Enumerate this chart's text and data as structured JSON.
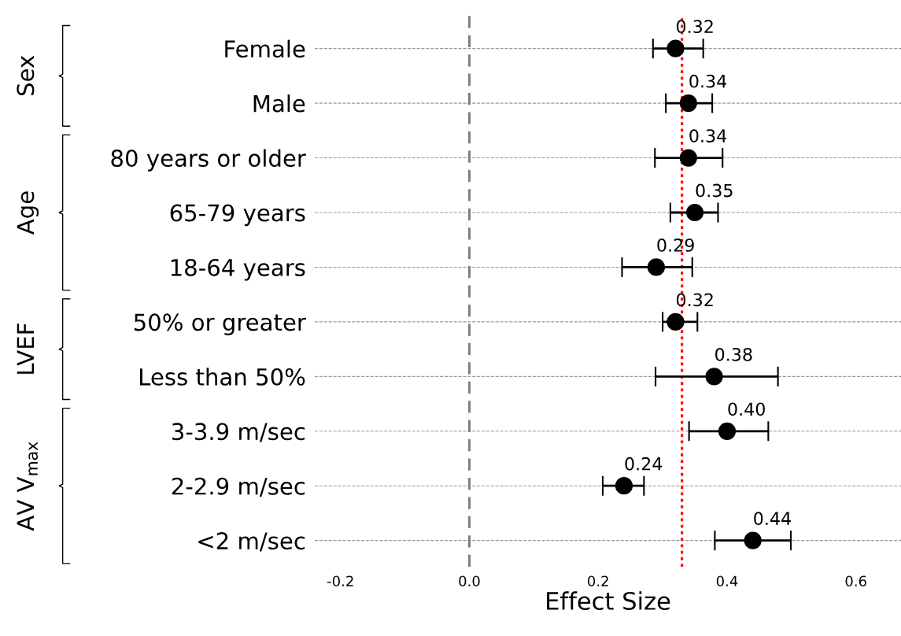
{
  "chart_data": {
    "type": "scatter",
    "xlabel": "Effect Size",
    "categories": [
      "Female",
      "Male",
      "80 years or older",
      "65-79 years",
      "18-64 years",
      "50% or greater",
      "Less than 50%",
      "3-3.9 m/sec",
      "2-2.9 m/sec",
      "<2 m/sec"
    ],
    "values": [
      0.32,
      0.34,
      0.34,
      0.35,
      0.29,
      0.32,
      0.38,
      0.4,
      0.24,
      0.44
    ],
    "value_labels": [
      "0.32",
      "0.34",
      "0.34",
      "0.35",
      "0.29",
      "0.32",
      "0.38",
      "0.40",
      "0.24",
      "0.44"
    ],
    "errors": [
      [
        0.285,
        0.363
      ],
      [
        0.305,
        0.377
      ],
      [
        0.288,
        0.393
      ],
      [
        0.312,
        0.386
      ],
      [
        0.237,
        0.346
      ],
      [
        0.3,
        0.354
      ],
      [
        0.289,
        0.479
      ],
      [
        0.341,
        0.464
      ],
      [
        0.207,
        0.271
      ],
      [
        0.381,
        0.499
      ]
    ],
    "color": "#000000",
    "marker": "circle",
    "orientation": "horizontal",
    "xlim": [
      -0.24,
      0.67
    ],
    "xticks": [
      -0.2,
      {
        "value": 0,
        "label": "0.0"
      },
      0.2,
      0.4,
      0.6
    ],
    "grid": "y",
    "ref_lines": [
      {
        "axis": "x",
        "value": 0,
        "color": "#808080",
        "line_style": "dashed"
      },
      {
        "axis": "x",
        "value": 0.33,
        "color": "#ff0000",
        "line_style": "dotted"
      }
    ],
    "annotations": [
      "Sex",
      "Age",
      "LVEF",
      "AV V$_{max}$"
    ]
  }
}
